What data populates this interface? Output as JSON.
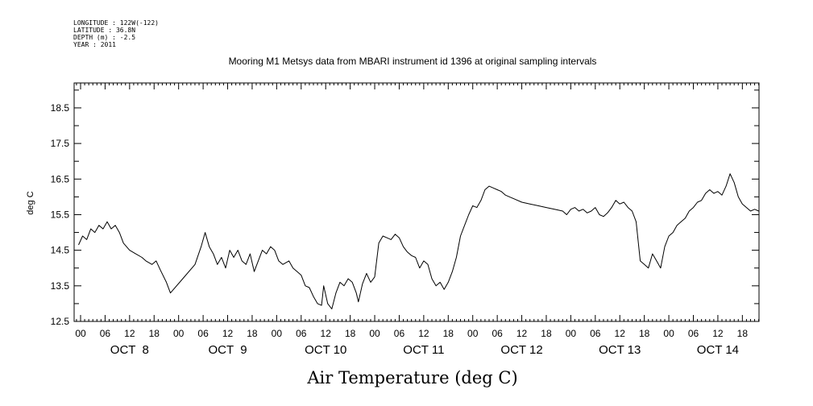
{
  "metadata": {
    "longitude": "LONGITUDE : 122W(-122)",
    "latitude": "LATITUDE : 36.8N",
    "depth": "DEPTH (m) : -2.5",
    "year": "YEAR : 2011"
  },
  "chart_data": {
    "type": "line",
    "title": "Mooring M1 Metsys data from MBARI instrument id 1396 at original sampling intervals",
    "xlabel": "Air Temperature (deg C)",
    "ylabel": "deg C",
    "ylim": [
      12.5,
      19.2
    ],
    "y_ticks": [
      "12.5",
      "13.5",
      "14.5",
      "15.5",
      "16.5",
      "17.5",
      "18.5"
    ],
    "hour_ticks": [
      "00",
      "06",
      "12",
      "18",
      "00",
      "06",
      "12",
      "18",
      "00",
      "06",
      "12",
      "18",
      "00",
      "06",
      "12",
      "18",
      "00",
      "06",
      "12",
      "18",
      "00",
      "06",
      "12",
      "18",
      "00",
      "06",
      "12",
      "18"
    ],
    "day_labels": [
      "OCT  8",
      "OCT  9",
      "OCT 10",
      "OCT 11",
      "OCT 12",
      "OCT 13",
      "OCT 14"
    ],
    "x_unit": "hours since OCT 8 00:00",
    "xlim": [
      -0.5,
      166
    ],
    "series": [
      {
        "name": "",
        "points": [
          [
            -0.5,
            14.65
          ],
          [
            0.5,
            14.9
          ],
          [
            1.5,
            14.8
          ],
          [
            2.5,
            15.1
          ],
          [
            3.5,
            15.0
          ],
          [
            4.5,
            15.2
          ],
          [
            5.5,
            15.1
          ],
          [
            6.5,
            15.3
          ],
          [
            7.5,
            15.1
          ],
          [
            8.5,
            15.2
          ],
          [
            9.5,
            15.0
          ],
          [
            10.5,
            14.7
          ],
          [
            12,
            14.5
          ],
          [
            13.5,
            14.4
          ],
          [
            15,
            14.3
          ],
          [
            16,
            14.2
          ],
          [
            17.5,
            14.1
          ],
          [
            18.5,
            14.2
          ],
          [
            19.5,
            13.95
          ],
          [
            21,
            13.6
          ],
          [
            22,
            13.3
          ],
          [
            25,
            13.7
          ],
          [
            28,
            14.1
          ],
          [
            29.5,
            14.6
          ],
          [
            30.5,
            15.0
          ],
          [
            31.5,
            14.6
          ],
          [
            32.5,
            14.4
          ],
          [
            33.5,
            14.1
          ],
          [
            34.5,
            14.3
          ],
          [
            35.5,
            14.0
          ],
          [
            36.5,
            14.5
          ],
          [
            37.5,
            14.3
          ],
          [
            38.5,
            14.5
          ],
          [
            39.5,
            14.2
          ],
          [
            40.5,
            14.1
          ],
          [
            41.5,
            14.4
          ],
          [
            42.5,
            13.9
          ],
          [
            43.5,
            14.2
          ],
          [
            44.5,
            14.5
          ],
          [
            45.5,
            14.4
          ],
          [
            46.5,
            14.6
          ],
          [
            47.5,
            14.5
          ],
          [
            48.5,
            14.2
          ],
          [
            49.5,
            14.1
          ],
          [
            51,
            14.2
          ],
          [
            52,
            14.0
          ],
          [
            53,
            13.9
          ],
          [
            54,
            13.8
          ],
          [
            55,
            13.5
          ],
          [
            56,
            13.45
          ],
          [
            57,
            13.2
          ],
          [
            58,
            13.0
          ],
          [
            59,
            12.95
          ],
          [
            59.5,
            13.5
          ],
          [
            60.5,
            13.0
          ],
          [
            61.5,
            12.85
          ],
          [
            62.5,
            13.3
          ],
          [
            63.5,
            13.6
          ],
          [
            64.5,
            13.5
          ],
          [
            65.5,
            13.7
          ],
          [
            66.5,
            13.6
          ],
          [
            67.5,
            13.3
          ],
          [
            68,
            13.05
          ],
          [
            69,
            13.55
          ],
          [
            70,
            13.85
          ],
          [
            71,
            13.6
          ],
          [
            72,
            13.75
          ],
          [
            73,
            14.7
          ],
          [
            74,
            14.9
          ],
          [
            75,
            14.85
          ],
          [
            76,
            14.8
          ],
          [
            77,
            14.95
          ],
          [
            78,
            14.85
          ],
          [
            79,
            14.6
          ],
          [
            80,
            14.45
          ],
          [
            81,
            14.35
          ],
          [
            82,
            14.3
          ],
          [
            83,
            14.0
          ],
          [
            84,
            14.2
          ],
          [
            85,
            14.1
          ],
          [
            86,
            13.7
          ],
          [
            87,
            13.5
          ],
          [
            88,
            13.6
          ],
          [
            89,
            13.4
          ],
          [
            90,
            13.6
          ],
          [
            91,
            13.9
          ],
          [
            92,
            14.3
          ],
          [
            93,
            14.9
          ],
          [
            94,
            15.2
          ],
          [
            95,
            15.5
          ],
          [
            96,
            15.75
          ],
          [
            97,
            15.7
          ],
          [
            98,
            15.9
          ],
          [
            99,
            16.2
          ],
          [
            100,
            16.3
          ],
          [
            101,
            16.25
          ],
          [
            102,
            16.2
          ],
          [
            103,
            16.15
          ],
          [
            104,
            16.05
          ],
          [
            105,
            16.0
          ],
          [
            106,
            15.95
          ],
          [
            108,
            15.85
          ],
          [
            110,
            15.8
          ],
          [
            112,
            15.75
          ],
          [
            114,
            15.7
          ],
          [
            116,
            15.65
          ],
          [
            118,
            15.6
          ],
          [
            119,
            15.5
          ],
          [
            120,
            15.65
          ],
          [
            121,
            15.7
          ],
          [
            122,
            15.6
          ],
          [
            123,
            15.65
          ],
          [
            124,
            15.55
          ],
          [
            125,
            15.6
          ],
          [
            126,
            15.7
          ],
          [
            127,
            15.5
          ],
          [
            128,
            15.45
          ],
          [
            129,
            15.55
          ],
          [
            130,
            15.7
          ],
          [
            131,
            15.9
          ],
          [
            132,
            15.8
          ],
          [
            133,
            15.85
          ],
          [
            134,
            15.7
          ],
          [
            135,
            15.6
          ],
          [
            136,
            15.3
          ],
          [
            137,
            14.2
          ],
          [
            138,
            14.1
          ],
          [
            139,
            14.0
          ],
          [
            140,
            14.4
          ],
          [
            141,
            14.2
          ],
          [
            142,
            14.0
          ],
          [
            143,
            14.6
          ],
          [
            144,
            14.9
          ],
          [
            145,
            15.0
          ],
          [
            146,
            15.2
          ],
          [
            147,
            15.3
          ],
          [
            148,
            15.4
          ],
          [
            149,
            15.6
          ],
          [
            150,
            15.7
          ],
          [
            151,
            15.85
          ],
          [
            152,
            15.9
          ],
          [
            153,
            16.1
          ],
          [
            154,
            16.2
          ],
          [
            155,
            16.1
          ],
          [
            156,
            16.15
          ],
          [
            157,
            16.05
          ],
          [
            158,
            16.3
          ],
          [
            159,
            16.65
          ],
          [
            160,
            16.4
          ],
          [
            161,
            16.0
          ],
          [
            162,
            15.8
          ],
          [
            163,
            15.7
          ],
          [
            164,
            15.6
          ],
          [
            165,
            15.65
          ],
          [
            166,
            15.6
          ]
        ]
      }
    ]
  }
}
